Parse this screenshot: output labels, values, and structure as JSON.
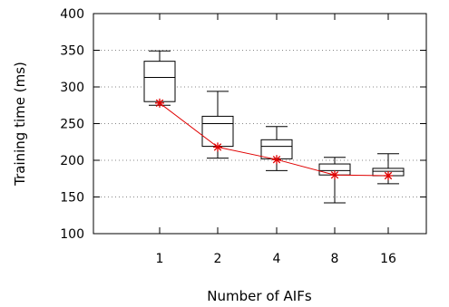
{
  "chart_data": {
    "type": "box",
    "title": "",
    "xlabel": "Number of AIFs",
    "ylabel": "Training time (ms)",
    "ylim": [
      100,
      400
    ],
    "yticks": [
      100,
      150,
      200,
      250,
      300,
      350,
      400
    ],
    "categories": [
      "1",
      "2",
      "4",
      "8",
      "16"
    ],
    "grid": "horizontal dotted",
    "boxes": [
      {
        "category": "1",
        "whisker_low": 275,
        "q1": 280,
        "median": 313,
        "q3": 335,
        "whisker_high": 349
      },
      {
        "category": "2",
        "whisker_low": 203,
        "q1": 219,
        "median": 250,
        "q3": 260,
        "whisker_high": 294
      },
      {
        "category": "4",
        "whisker_low": 186,
        "q1": 202,
        "median": 219,
        "q3": 228,
        "whisker_high": 246
      },
      {
        "category": "8",
        "whisker_low": 142,
        "q1": 180,
        "median": 186,
        "q3": 195,
        "whisker_high": 204
      },
      {
        "category": "16",
        "whisker_low": 168,
        "q1": 179,
        "median": 185,
        "q3": 189,
        "whisker_high": 209
      }
    ],
    "mean_line": {
      "values": [
        278,
        218,
        201,
        180,
        179
      ],
      "color": "#e00000",
      "marker": "star"
    },
    "colors": {
      "box": "#000000",
      "mean": "#e00000",
      "grid": "#888888"
    }
  }
}
